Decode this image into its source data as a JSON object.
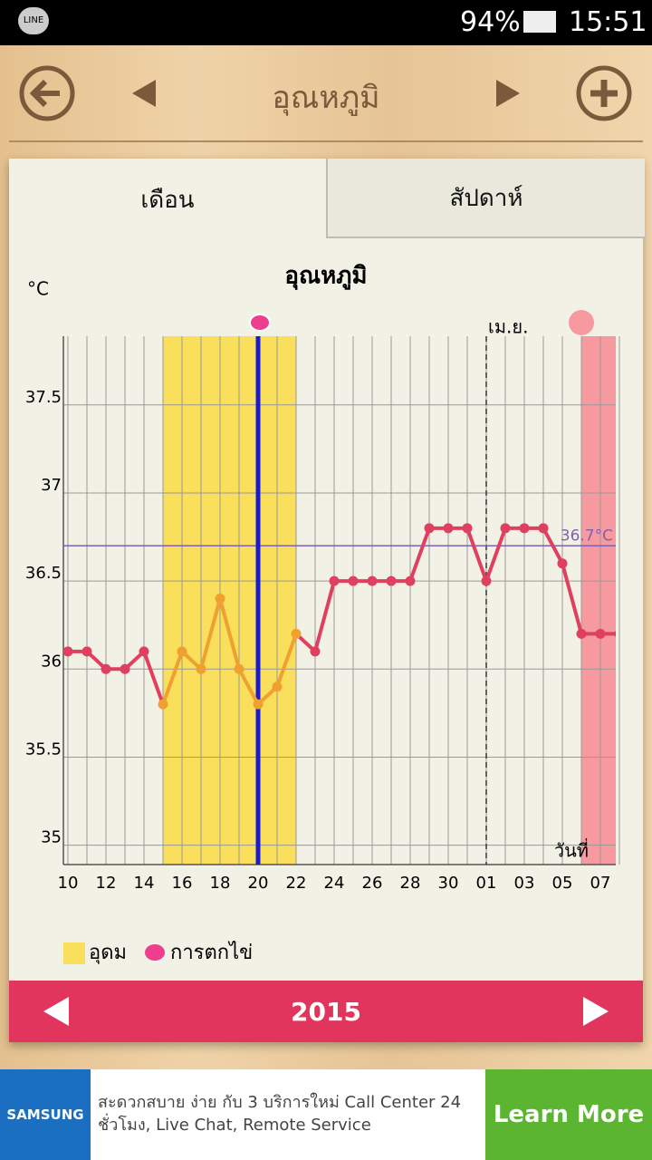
{
  "status_bar": {
    "battery": "94%",
    "time": "15:51"
  },
  "header": {
    "title": "อุณหภูมิ"
  },
  "tabs": [
    "เดือน",
    "สัปดาห์"
  ],
  "chart_data": {
    "type": "line",
    "title": "อุณหภูมิ",
    "y_unit": "°C",
    "x_label": "วันที่",
    "categories": [
      "10",
      null,
      "12",
      null,
      "14",
      null,
      "16",
      null,
      "18",
      null,
      "20",
      null,
      "22",
      null,
      "24",
      null,
      "26",
      null,
      "28",
      null,
      "30",
      null,
      "01",
      null,
      "03",
      null,
      "05",
      null,
      "07",
      null
    ],
    "values": [
      36.1,
      36.1,
      36.0,
      36.0,
      36.1,
      35.8,
      36.1,
      36.0,
      36.4,
      36.0,
      35.8,
      35.9,
      36.2,
      36.1,
      36.5,
      36.5,
      36.5,
      36.5,
      36.5,
      36.8,
      36.8,
      36.8,
      36.5,
      36.8,
      36.8,
      36.8,
      36.6,
      36.2,
      36.2,
      36.2
    ],
    "color": "#e0405f",
    "fertile_color": "#f0a030",
    "ylim": [
      34.89,
      37.89
    ],
    "yticks": [
      35,
      35.5,
      36,
      36.5,
      37,
      37.5
    ],
    "grid": true,
    "reference_line": {
      "value": 36.7,
      "label": "36.7°C",
      "color": "#8060b0"
    },
    "fertile_band": {
      "from": 5,
      "to": 12,
      "color": "#f9df5c"
    },
    "ovulation_index": 10,
    "period_start_index": 27,
    "month_divider": {
      "index": 22,
      "label": "เม.ย."
    },
    "legend": [
      {
        "name": "อุดม",
        "color": "#f9df5c"
      },
      {
        "name": "การตกไข่",
        "color": "#ee3f8f"
      }
    ]
  },
  "year_bar": {
    "year": "2015"
  },
  "ad": {
    "brand": "SAMSUNG",
    "text": "สะดวกสบาย ง่าย กับ 3 บริการใหม่ Call Center 24 ชั่วโมง, Live Chat, Remote Service",
    "button": "Learn More"
  }
}
